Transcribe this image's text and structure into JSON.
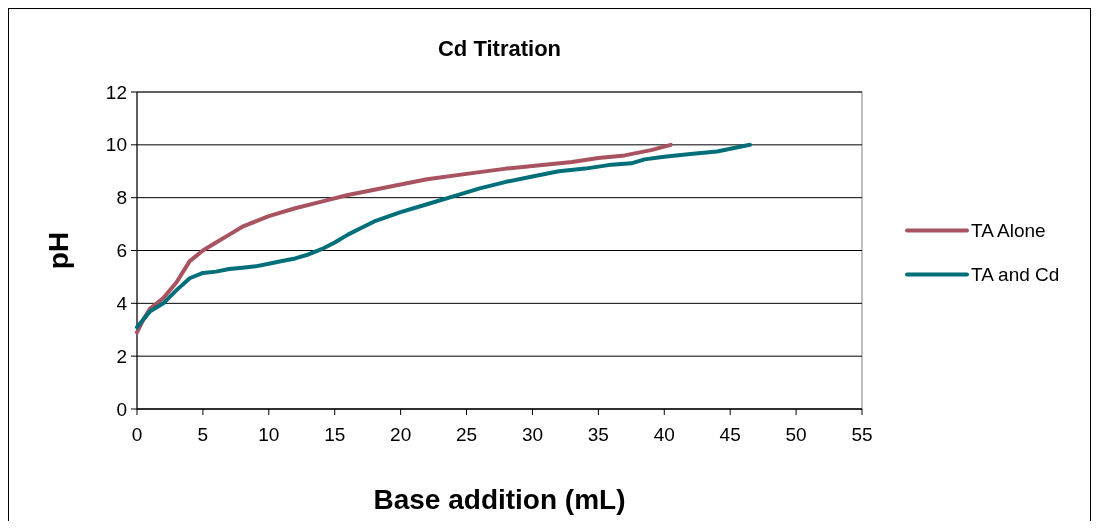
{
  "chart_data": {
    "type": "line",
    "title": "Cd Titration",
    "xlabel": "Base addition (mL)",
    "ylabel": "pH",
    "xlim": [
      0,
      55
    ],
    "xticks": [
      0,
      5,
      10,
      15,
      20,
      25,
      30,
      35,
      40,
      45,
      50,
      55
    ],
    "ylim": [
      0,
      12
    ],
    "yticks": [
      0,
      2,
      4,
      6,
      8,
      10,
      12
    ],
    "grid": "y",
    "legend": "right",
    "marker": "none",
    "line_style": "solid",
    "series": [
      {
        "name": "TA Alone",
        "color": "#a8535f",
        "x": [
          0,
          0.5,
          1,
          2,
          3,
          3.5,
          4,
          5,
          6,
          7,
          8,
          9,
          10,
          12,
          14,
          16,
          18,
          20,
          22,
          25,
          28,
          30,
          33,
          35,
          37,
          39,
          40.5
        ],
        "values": [
          2.9,
          3.4,
          3.8,
          4.2,
          4.8,
          5.2,
          5.6,
          6.0,
          6.3,
          6.6,
          6.9,
          7.1,
          7.3,
          7.6,
          7.85,
          8.1,
          8.3,
          8.5,
          8.7,
          8.9,
          9.1,
          9.2,
          9.35,
          9.5,
          9.6,
          9.8,
          10.0
        ]
      },
      {
        "name": "TA and Cd",
        "color": "#006f7a",
        "x": [
          0,
          0.5,
          1,
          2,
          3,
          4,
          5,
          6,
          7,
          8,
          9,
          10,
          11,
          12,
          13,
          14,
          15,
          16,
          17,
          18,
          20,
          22,
          24,
          26,
          28,
          30,
          32,
          34,
          36,
          37.5,
          38.5,
          40,
          42,
          44,
          46.5
        ],
        "values": [
          3.1,
          3.4,
          3.7,
          4.0,
          4.5,
          4.95,
          5.15,
          5.2,
          5.3,
          5.35,
          5.4,
          5.5,
          5.6,
          5.7,
          5.85,
          6.05,
          6.3,
          6.6,
          6.85,
          7.1,
          7.45,
          7.75,
          8.05,
          8.35,
          8.6,
          8.8,
          9.0,
          9.1,
          9.25,
          9.3,
          9.45,
          9.55,
          9.65,
          9.75,
          10.0
        ]
      }
    ]
  }
}
